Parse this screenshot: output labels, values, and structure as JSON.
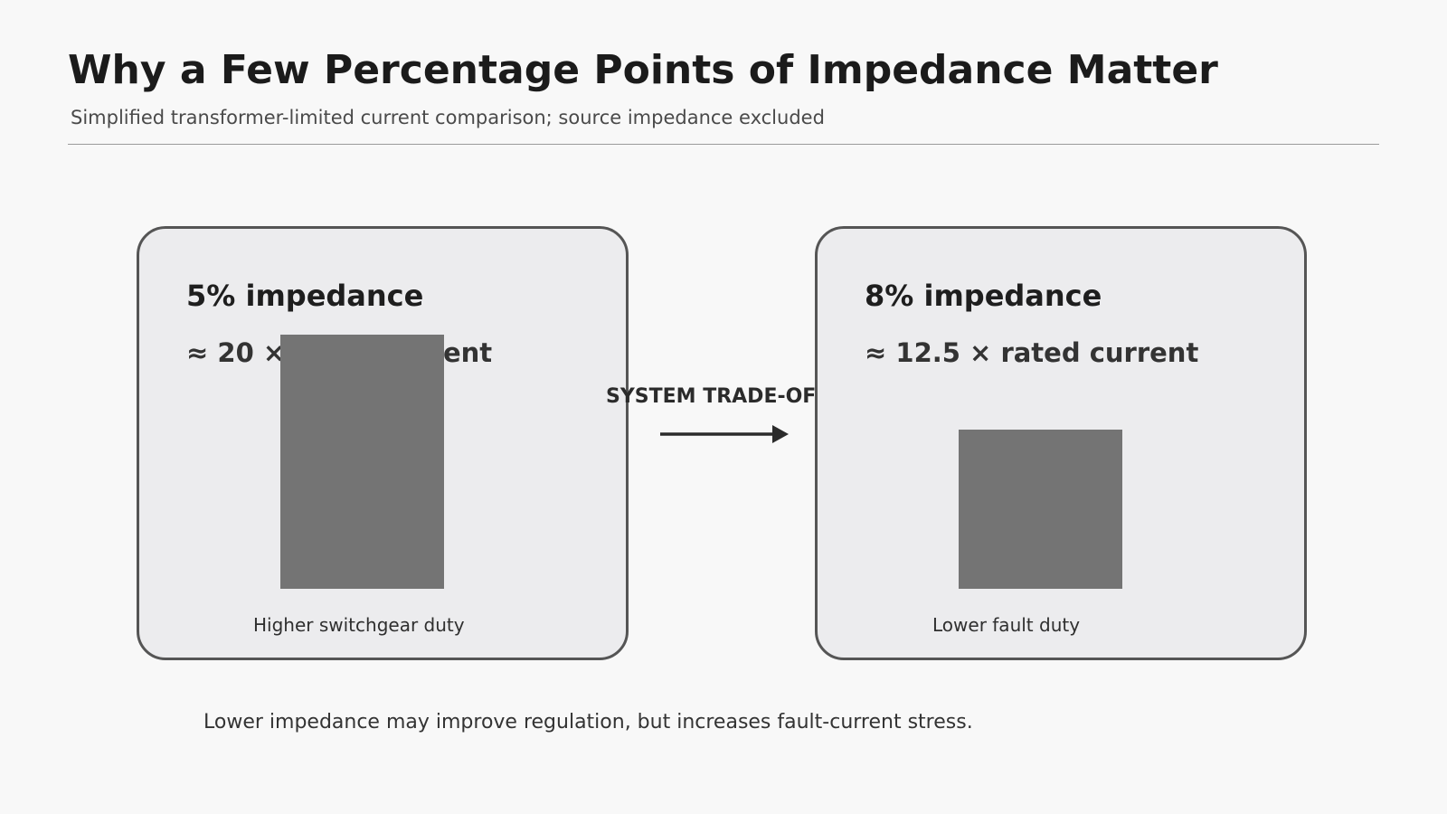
{
  "header": {
    "title": "Why a Few Percentage Points of Impedance Matter",
    "subtitle": "Simplified transformer-limited current comparison; source impedance excluded"
  },
  "comparison": {
    "left": {
      "heading": "5% impedance",
      "multiplier": "≈ 20 × rated current",
      "caption": "Higher switchgear duty",
      "relative_current": 20
    },
    "right": {
      "heading": "8% impedance",
      "multiplier": "≈ 12.5 × rated current",
      "caption": "Lower fault duty",
      "relative_current": 12.5
    },
    "connector": {
      "label": "SYSTEM TRADE-OFF"
    }
  },
  "footnote": "Lower impedance may improve regulation, but increases fault-current stress.",
  "colors": {
    "bar": "#747474",
    "card_fill": "#ececee",
    "card_border": "#555555",
    "arrow": "#2b2b2b"
  }
}
